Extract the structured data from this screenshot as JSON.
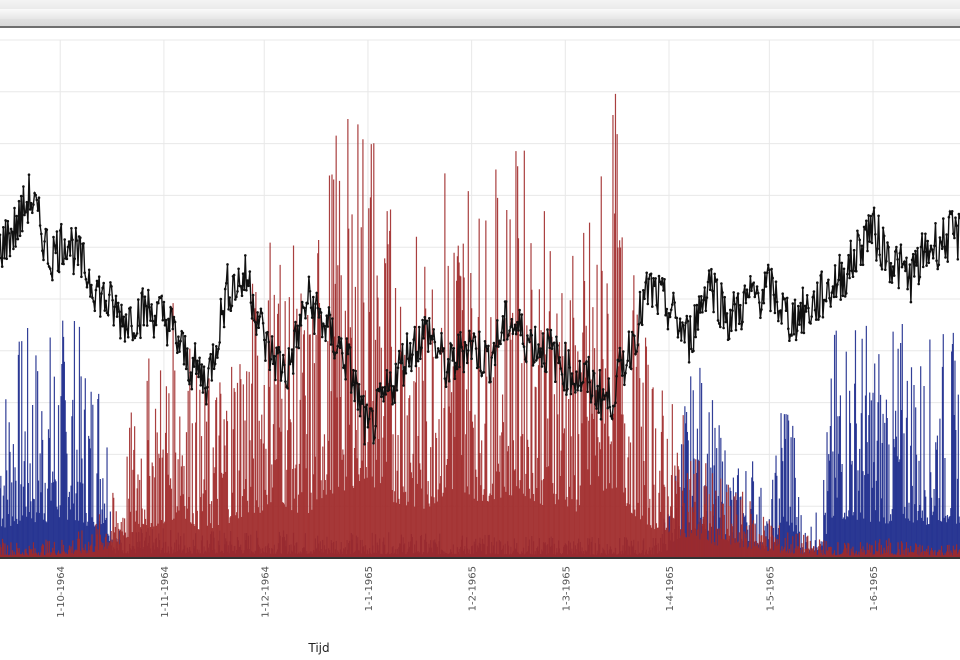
{
  "window": {},
  "chart_data": {
    "type": "line",
    "xlabel": "Tijd",
    "ylabel": "",
    "x_ticks": [
      "1-10-1964",
      "1-11-1964",
      "1-12-1964",
      "1-1-1965",
      "1-2-1965",
      "1-3-1965",
      "1-4-1965",
      "1-5-1965",
      "1-6-1965"
    ],
    "x_range": [
      "1964-09-13",
      "1965-06-27"
    ],
    "y_range": [
      0,
      100
    ],
    "grid": true,
    "legend": "none",
    "series": [
      {
        "color": "#1c2a8c",
        "style": "dense vertical spikes (summer)",
        "x": [
          "1964-09-15",
          "1964-09-20",
          "1964-09-25",
          "1964-10-01",
          "1964-10-05",
          "1964-10-08",
          "1964-10-11",
          "1964-10-14",
          "1964-10-17",
          "1965-03-27",
          "1965-04-01",
          "1965-04-06",
          "1965-04-11",
          "1965-04-16",
          "1965-04-21",
          "1965-04-26",
          "1965-05-01",
          "1965-05-06",
          "1965-05-11",
          "1965-05-16",
          "1965-05-21",
          "1965-05-26",
          "1965-06-01",
          "1965-06-06",
          "1965-06-11",
          "1965-06-16",
          "1965-06-21",
          "1965-06-26"
        ],
        "values": [
          38,
          46,
          44,
          48,
          50,
          42,
          40,
          44,
          6,
          4,
          10,
          34,
          40,
          26,
          18,
          22,
          8,
          46,
          6,
          10,
          48,
          50,
          46,
          44,
          48,
          42,
          46,
          44
        ]
      },
      {
        "color": "#a02a2a",
        "style": "dense vertical spikes (winter)",
        "x": [
          "1964-09-13",
          "1964-09-20",
          "1964-10-01",
          "1964-10-10",
          "1964-10-18",
          "1964-10-25",
          "1964-11-01",
          "1964-11-06",
          "1964-11-12",
          "1964-11-18",
          "1964-11-24",
          "1964-11-30",
          "1964-12-04",
          "1964-12-08",
          "1964-12-14",
          "1964-12-20",
          "1964-12-26",
          "1965-01-01",
          "1965-01-06",
          "1965-01-12",
          "1965-01-18",
          "1965-01-24",
          "1965-01-30",
          "1965-02-04",
          "1965-02-10",
          "1965-02-16",
          "1965-02-22",
          "1965-02-28",
          "1965-03-04",
          "1965-03-10",
          "1965-03-16",
          "1965-03-20",
          "1965-03-27",
          "1965-04-05",
          "1965-04-15",
          "1965-04-25",
          "1965-05-05",
          "1965-05-15",
          "1965-05-25",
          "1965-06-05",
          "1965-06-15",
          "1965-06-25"
        ],
        "values": [
          4,
          3,
          4,
          6,
          14,
          38,
          42,
          56,
          34,
          40,
          52,
          58,
          76,
          64,
          52,
          82,
          86,
          100,
          74,
          68,
          60,
          80,
          84,
          70,
          78,
          82,
          68,
          70,
          58,
          76,
          92,
          60,
          38,
          28,
          16,
          12,
          6,
          4,
          3,
          4,
          3,
          3
        ]
      },
      {
        "color": "#111111",
        "style": "line with point markers",
        "x": [
          "1964-09-13",
          "1964-09-18",
          "1964-09-22",
          "1964-09-28",
          "1964-10-03",
          "1964-10-08",
          "1964-10-14",
          "1964-10-20",
          "1964-10-27",
          "1964-11-02",
          "1964-11-08",
          "1964-11-14",
          "1964-11-20",
          "1964-11-26",
          "1964-12-02",
          "1964-12-08",
          "1964-12-14",
          "1964-12-20",
          "1964-12-26",
          "1965-01-01",
          "1965-01-07",
          "1965-01-13",
          "1965-01-19",
          "1965-01-25",
          "1965-01-31",
          "1965-02-06",
          "1965-02-12",
          "1965-02-18",
          "1965-02-24",
          "1965-03-02",
          "1965-03-08",
          "1965-03-14",
          "1965-03-20",
          "1965-03-26",
          "1965-04-01",
          "1965-04-07",
          "1965-04-13",
          "1965-04-19",
          "1965-04-25",
          "1965-05-01",
          "1965-05-07",
          "1965-05-13",
          "1965-05-19",
          "1965-05-25",
          "1965-05-31",
          "1965-06-06",
          "1965-06-12",
          "1965-06-18",
          "1965-06-24"
        ],
        "values": [
          60,
          64,
          70,
          58,
          62,
          56,
          50,
          46,
          48,
          46,
          38,
          34,
          52,
          54,
          40,
          36,
          50,
          44,
          38,
          24,
          32,
          40,
          44,
          36,
          42,
          38,
          46,
          42,
          40,
          36,
          34,
          30,
          40,
          52,
          48,
          42,
          54,
          46,
          50,
          52,
          46,
          48,
          52,
          56,
          64,
          58,
          54,
          60,
          62
        ]
      }
    ]
  }
}
